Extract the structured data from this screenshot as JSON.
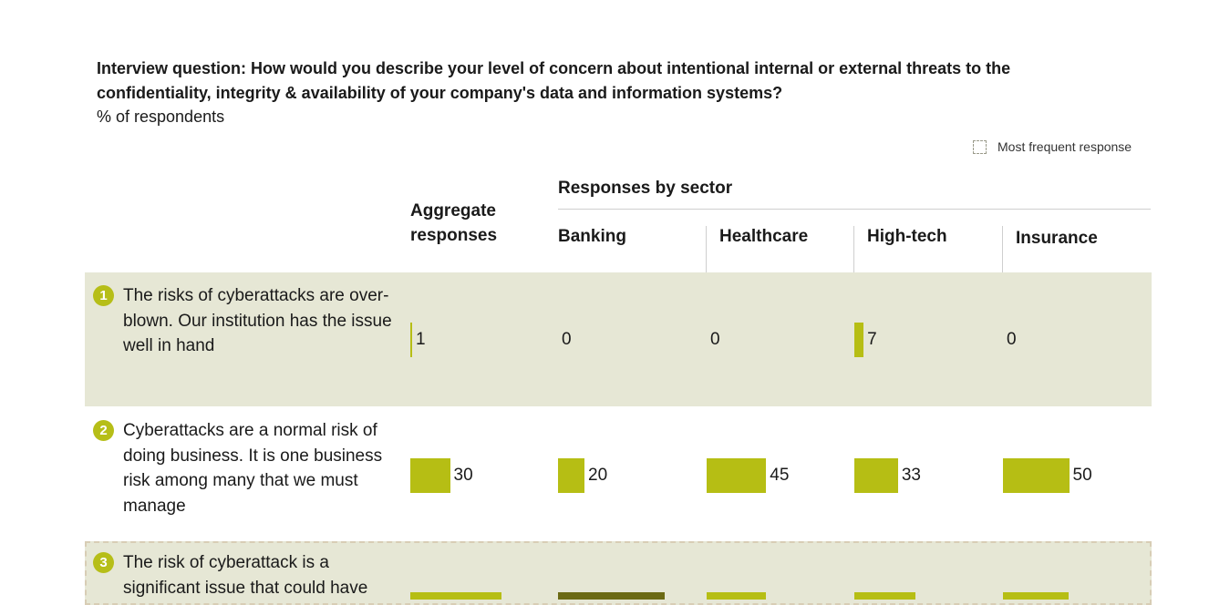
{
  "question": "Interview question: How would you describe your level of concern about  intentional internal or external threats to the confidentiality, integrity & availability of your company's data and information systems?",
  "unit_label": "% of respondents",
  "legend_label": "Most frequent response",
  "headers": {
    "aggregate": "Aggregate responses",
    "sector_group": "Responses by sector",
    "sectors": [
      "Banking",
      "Healthcare",
      "High-tech",
      "Insurance"
    ]
  },
  "rows": [
    {
      "number": "1",
      "statement": "The risks of cyberattacks are over-blown. Our institution has the issue well in hand"
    },
    {
      "number": "2",
      "statement": "Cyberattacks are a normal risk of doing business. It is one business risk among many that we must manage"
    },
    {
      "number": "3",
      "statement": "The risk of cyberattack is a significant issue that could have"
    }
  ],
  "chart_data": {
    "type": "bar",
    "unit": "% of respondents",
    "categories": [
      "Aggregate responses",
      "Banking",
      "Healthcare",
      "High-tech",
      "Insurance"
    ],
    "series": [
      {
        "name": "The risks of cyberattacks are over-blown. Our institution has the issue well in hand",
        "values": [
          1,
          0,
          0,
          7,
          0
        ]
      },
      {
        "name": "Cyberattacks are a normal risk of doing business. It is one business risk among many that we must manage",
        "values": [
          30,
          20,
          45,
          33,
          50
        ]
      }
    ],
    "colors": {
      "bar": "#b6be14",
      "most_frequent": "#6b6a14",
      "row_shade": "#e6e7d5",
      "badge": "#b6be18"
    }
  }
}
